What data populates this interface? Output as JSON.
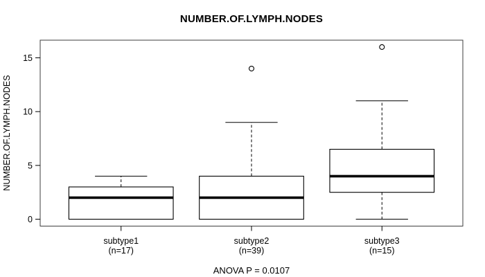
{
  "chart_data": {
    "type": "boxplot",
    "title": "NUMBER.OF.LYMPH.NODES",
    "ylabel": "NUMBER.OF.LYMPH.NODES",
    "annotation": "ANOVA P = 0.0107",
    "yticks": [
      0,
      5,
      10,
      15
    ],
    "ylim": [
      -0.64,
      16.64
    ],
    "grid": false,
    "legend": false,
    "groups": [
      {
        "label": "subtype1",
        "sublabel": "(n=17)",
        "min": 0,
        "q1": 0,
        "median": 2,
        "q3": 3,
        "whisker_high": 4,
        "outliers": []
      },
      {
        "label": "subtype2",
        "sublabel": "(n=39)",
        "min": 0,
        "q1": 0,
        "median": 2,
        "q3": 4,
        "whisker_high": 9,
        "outliers": [
          14
        ]
      },
      {
        "label": "subtype3",
        "sublabel": "(n=15)",
        "min": 0,
        "q1": 2.5,
        "median": 4,
        "q3": 6.5,
        "whisker_high": 11,
        "outliers": [
          16
        ]
      }
    ],
    "colors": {
      "line": "#000000",
      "frame": "#3d3d3d",
      "box_fill": "#ffffff",
      "background": "#ffffff"
    }
  }
}
